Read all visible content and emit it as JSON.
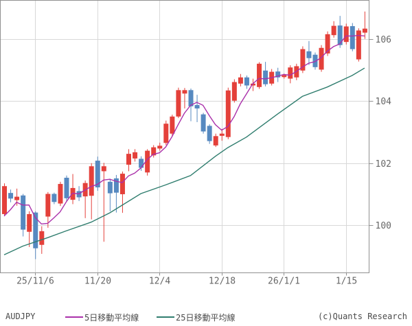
{
  "legend": {
    "symbol": "AUDJPY",
    "ma5_label": "5日移動平均線",
    "ma25_label": "25日移動平均線",
    "copyright": "(c)Quants Research"
  },
  "colors": {
    "up_candle": "#e4403a",
    "down_candle": "#5689c0",
    "ma5_line": "#aa30aa",
    "ma25_line": "#2f7d6e",
    "grid": "#d8d8d8",
    "axis_border": "#909090",
    "tick_text": "#666666"
  },
  "chart_data": {
    "type": "candlestick",
    "symbol": "AUDJPY",
    "title": "",
    "xlabel": "",
    "ylabel": "",
    "grid": true,
    "legend_position": "bottom",
    "y_axis": {
      "side": "right",
      "ticks": [
        100,
        102,
        104,
        106
      ],
      "value_top": 107.24,
      "value_bottom": 98.47
    },
    "x_axis": {
      "tick_indices": [
        5,
        15,
        25,
        35,
        45,
        55
      ],
      "tick_labels": [
        "25/11/6",
        "11/20",
        "12/4",
        "12/18",
        "26/1/1",
        "1/15"
      ]
    },
    "candles": {
      "columns": [
        "open",
        "high",
        "low",
        "close"
      ],
      "rows": [
        [
          100.36,
          101.35,
          100.29,
          101.26
        ],
        [
          101.04,
          101.15,
          100.74,
          100.86
        ],
        [
          100.81,
          101.18,
          100.63,
          100.92
        ],
        [
          100.96,
          101.01,
          99.64,
          99.86
        ],
        [
          99.79,
          100.45,
          99.3,
          100.36
        ],
        [
          100.41,
          100.45,
          98.91,
          99.26
        ],
        [
          99.37,
          99.97,
          99.08,
          99.81
        ],
        [
          100.28,
          101.07,
          99.92,
          101.01
        ],
        [
          101.01,
          101.05,
          100.68,
          100.75
        ],
        [
          100.7,
          101.4,
          100.62,
          101.33
        ],
        [
          101.53,
          101.6,
          100.78,
          100.87
        ],
        [
          100.82,
          101.65,
          100.68,
          101.2
        ],
        [
          101.1,
          101.26,
          100.78,
          100.9
        ],
        [
          100.93,
          101.44,
          100.23,
          101.36
        ],
        [
          100.95,
          102.0,
          100.19,
          101.9
        ],
        [
          102.08,
          102.21,
          101.11,
          101.22
        ],
        [
          101.74,
          102.01,
          99.47,
          101.9
        ],
        [
          101.4,
          101.5,
          100.45,
          101.03
        ],
        [
          101.51,
          101.62,
          100.41,
          101.05
        ],
        [
          101.0,
          101.73,
          100.4,
          101.66
        ],
        [
          101.95,
          102.45,
          101.74,
          102.3
        ],
        [
          102.15,
          102.45,
          102.05,
          102.35
        ],
        [
          102.14,
          102.22,
          101.75,
          101.85
        ],
        [
          101.7,
          102.45,
          101.6,
          102.4
        ],
        [
          102.25,
          102.58,
          102.18,
          102.51
        ],
        [
          102.47,
          102.66,
          102.4,
          102.56
        ],
        [
          102.65,
          103.37,
          102.58,
          103.27
        ],
        [
          102.95,
          103.56,
          102.85,
          103.5
        ],
        [
          103.5,
          104.43,
          103.45,
          104.35
        ],
        [
          104.24,
          104.42,
          103.76,
          104.35
        ],
        [
          104.35,
          104.4,
          103.35,
          103.83
        ],
        [
          103.87,
          104.2,
          103.32,
          103.76
        ],
        [
          103.57,
          103.62,
          102.95,
          103.02
        ],
        [
          103.2,
          103.25,
          102.62,
          102.71
        ],
        [
          102.57,
          102.95,
          102.52,
          102.87
        ],
        [
          102.88,
          103.1,
          102.72,
          102.95
        ],
        [
          102.84,
          104.43,
          102.77,
          104.34
        ],
        [
          104.01,
          104.7,
          103.95,
          104.61
        ],
        [
          104.56,
          104.87,
          104.47,
          104.76
        ],
        [
          104.76,
          104.82,
          104.39,
          104.5
        ],
        [
          104.5,
          104.72,
          104.32,
          104.56
        ],
        [
          104.45,
          105.25,
          104.39,
          105.2
        ],
        [
          104.98,
          105.26,
          104.47,
          104.54
        ],
        [
          104.56,
          105.03,
          104.5,
          104.94
        ],
        [
          104.95,
          105.07,
          104.61,
          104.76
        ],
        [
          104.77,
          104.88,
          104.72,
          104.83
        ],
        [
          104.72,
          105.15,
          104.57,
          105.08
        ],
        [
          104.76,
          105.2,
          104.67,
          105.12
        ],
        [
          104.98,
          105.76,
          104.9,
          105.67
        ],
        [
          105.6,
          105.93,
          105.16,
          105.38
        ],
        [
          105.49,
          105.56,
          105.01,
          105.09
        ],
        [
          105.01,
          105.8,
          104.94,
          105.71
        ],
        [
          105.53,
          106.24,
          105.45,
          106.15
        ],
        [
          106.12,
          106.57,
          106.04,
          106.42
        ],
        [
          106.43,
          106.74,
          105.71,
          105.8
        ],
        [
          105.9,
          106.49,
          105.82,
          106.4
        ],
        [
          106.41,
          106.51,
          105.6,
          105.67
        ],
        [
          105.34,
          106.34,
          105.27,
          106.27
        ],
        [
          106.2,
          106.88,
          106.0,
          106.33
        ]
      ]
    },
    "series": [
      {
        "name": "5日移動平均線",
        "derivation": "sma5_of_close",
        "lead_values": [
          100.3,
          100.5,
          100.74,
          100.65
        ]
      },
      {
        "name": "25日移動平均線",
        "points": [
          [
            0,
            99.05
          ],
          [
            3,
            99.33
          ],
          [
            7,
            99.6
          ],
          [
            10,
            99.82
          ],
          [
            14,
            100.1
          ],
          [
            17,
            100.4
          ],
          [
            22,
            101.02
          ],
          [
            26,
            101.3
          ],
          [
            30,
            101.6
          ],
          [
            34,
            102.22
          ],
          [
            36,
            102.5
          ],
          [
            39,
            102.84
          ],
          [
            44,
            103.58
          ],
          [
            48,
            104.15
          ],
          [
            52,
            104.45
          ],
          [
            56,
            104.82
          ],
          [
            58,
            105.06
          ]
        ]
      }
    ]
  }
}
